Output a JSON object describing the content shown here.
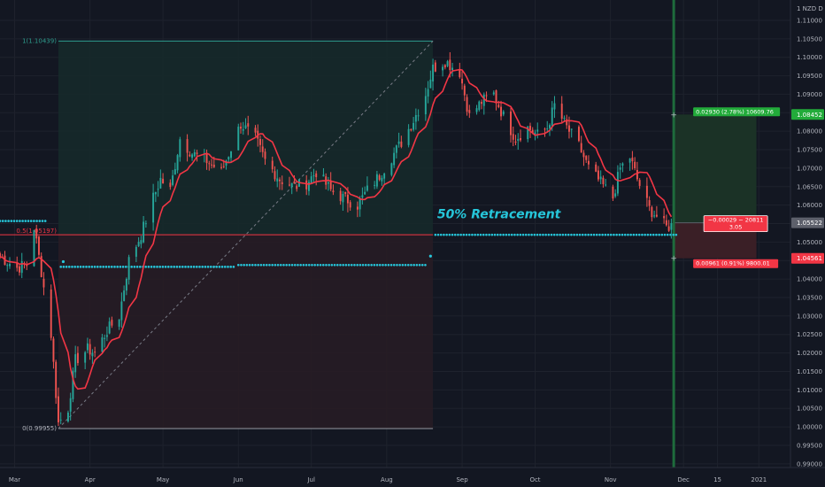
{
  "chart_data": {
    "type": "candlestick",
    "currency_label": "1 NZD D",
    "price_axis": {
      "ticks": [
        "1.11000",
        "1.10500",
        "1.10000",
        "1.09500",
        "1.09000",
        "1.08500",
        "1.08000",
        "1.07500",
        "1.07000",
        "1.06500",
        "1.06000",
        "1.05500",
        "1.05000",
        "1.04500",
        "1.04000",
        "1.03500",
        "1.03000",
        "1.02500",
        "1.02000",
        "1.01500",
        "1.01000",
        "1.00500",
        "1.00000",
        "0.99500",
        "0.99000"
      ],
      "ylim": [
        0.989,
        1.1155
      ]
    },
    "time_axis": {
      "ticks": [
        {
          "label": "Mar",
          "date": "2020-03-01"
        },
        {
          "label": "Apr",
          "date": "2020-04-01"
        },
        {
          "label": "May",
          "date": "2020-05-01"
        },
        {
          "label": "Jun",
          "date": "2020-06-01"
        },
        {
          "label": "Jul",
          "date": "2020-07-01"
        },
        {
          "label": "Aug",
          "date": "2020-08-01"
        },
        {
          "label": "Sep",
          "date": "2020-09-01"
        },
        {
          "label": "Oct",
          "date": "2020-10-01"
        },
        {
          "label": "Nov",
          "date": "2020-11-01"
        },
        {
          "label": "Dec",
          "date": "2020-12-01"
        },
        {
          "label": "15",
          "date": "2020-12-15"
        },
        {
          "label": "2021",
          "date": "2021-01-01"
        }
      ],
      "xlim": [
        "2020-02-24",
        "2021-01-14"
      ]
    },
    "price_keypoints": [
      [
        "2020-02-24",
        1.046
      ],
      [
        "2020-03-02",
        1.043
      ],
      [
        "2020-03-06",
        1.044
      ],
      [
        "2020-03-09",
        1.054
      ],
      [
        "2020-03-12",
        1.042
      ],
      [
        "2020-03-16",
        1.025
      ],
      [
        "2020-03-19",
        1.001
      ],
      [
        "2020-03-23",
        1.005
      ],
      [
        "2020-03-26",
        1.018
      ],
      [
        "2020-03-31",
        1.021
      ],
      [
        "2020-04-03",
        1.02
      ],
      [
        "2020-04-08",
        1.026
      ],
      [
        "2020-04-13",
        1.03
      ],
      [
        "2020-04-17",
        1.045
      ],
      [
        "2020-04-22",
        1.052
      ],
      [
        "2020-04-27",
        1.062
      ],
      [
        "2020-04-30",
        1.067
      ],
      [
        "2020-05-04",
        1.064
      ],
      [
        "2020-05-08",
        1.078
      ],
      [
        "2020-05-13",
        1.074
      ],
      [
        "2020-05-19",
        1.072
      ],
      [
        "2020-05-25",
        1.069
      ],
      [
        "2020-06-02",
        1.082
      ],
      [
        "2020-06-08",
        1.078
      ],
      [
        "2020-06-12",
        1.072
      ],
      [
        "2020-06-18",
        1.067
      ],
      [
        "2020-06-24",
        1.065
      ],
      [
        "2020-06-29",
        1.066
      ],
      [
        "2020-07-03",
        1.069
      ],
      [
        "2020-07-09",
        1.064
      ],
      [
        "2020-07-14",
        1.062
      ],
      [
        "2020-07-20",
        1.06
      ],
      [
        "2020-07-24",
        1.064
      ],
      [
        "2020-07-29",
        1.068
      ],
      [
        "2020-08-03",
        1.073
      ],
      [
        "2020-08-07",
        1.077
      ],
      [
        "2020-08-12",
        1.083
      ],
      [
        "2020-08-17",
        1.09
      ],
      [
        "2020-08-20",
        1.097
      ],
      [
        "2020-08-25",
        1.099
      ],
      [
        "2020-08-31",
        1.096
      ],
      [
        "2020-09-04",
        1.084
      ],
      [
        "2020-09-09",
        1.088
      ],
      [
        "2020-09-14",
        1.09
      ],
      [
        "2020-09-18",
        1.084
      ],
      [
        "2020-09-23",
        1.078
      ],
      [
        "2020-09-28",
        1.081
      ],
      [
        "2020-10-02",
        1.079
      ],
      [
        "2020-10-06",
        1.081
      ],
      [
        "2020-10-09",
        1.087
      ],
      [
        "2020-10-14",
        1.081
      ],
      [
        "2020-10-19",
        1.076
      ],
      [
        "2020-10-23",
        1.07
      ],
      [
        "2020-10-28",
        1.066
      ],
      [
        "2020-11-02",
        1.062
      ],
      [
        "2020-11-05",
        1.07
      ],
      [
        "2020-11-09",
        1.073
      ],
      [
        "2020-11-12",
        1.067
      ],
      [
        "2020-11-17",
        1.059
      ],
      [
        "2020-11-20",
        1.057
      ],
      [
        "2020-11-24",
        1.054
      ],
      [
        "2020-11-26",
        1.0545
      ]
    ],
    "moving_average": {
      "color": "#f23645",
      "period_bars": 9
    },
    "fibonacci": {
      "level_1": {
        "label": "1(1.10439)",
        "price": 1.10439
      },
      "level_05": {
        "label": "0.5(1.05197)",
        "price": 1.05197
      },
      "level_0": {
        "label": "0(0.99955)",
        "price": 0.99955
      },
      "x_start": "2020-03-19",
      "x_end": "2020-08-20"
    },
    "support_dotted_lines": [
      {
        "x_start": "2020-02-24",
        "x_end": "2020-03-14",
        "price": 1.0557
      },
      {
        "x_start": "2020-03-20",
        "x_end": "2020-05-31",
        "price": 1.0433
      },
      {
        "x_start": "2020-06-01",
        "x_end": "2020-08-18",
        "price": 1.0438
      },
      {
        "x_start": "2020-08-21",
        "x_end": "2020-11-29",
        "price": 1.05197
      }
    ],
    "retracement_annotation": {
      "text": "50% Retracement",
      "at_date": "2020-08-21",
      "price": 1.0565
    },
    "position": {
      "entry_date": "2020-11-27",
      "end_date": "2020-12-31",
      "target_price": 1.08452,
      "entry_price": 1.05522,
      "stop_price": 1.04561,
      "target_label": "0.02930 (2.78%) 10609.76",
      "stop_label": "0.00961 (0.91%) 9800.01",
      "current_label_line1": "−0.00029 ~ 20811",
      "current_label_line2": "3.05"
    },
    "highlighted_prices": [
      {
        "label": "1.08452",
        "price": 1.08452,
        "color": "#22ab3a"
      },
      {
        "label": "1.05522",
        "price": 1.05522,
        "color": "#5d606b"
      },
      {
        "label": "1.04561",
        "price": 1.04561,
        "color": "#f23645"
      }
    ],
    "colors": {
      "background": "#131722",
      "up": "#26a69a",
      "down": "#ef5350",
      "fib_top": "#2e9d8e",
      "fib_mid": "#f23645",
      "dots": "#26c6da",
      "annotation": "#26c6da",
      "target_zone": "#1b3226",
      "stop_zone": "#3a1f26",
      "position_line": "#1e6b3c"
    }
  }
}
